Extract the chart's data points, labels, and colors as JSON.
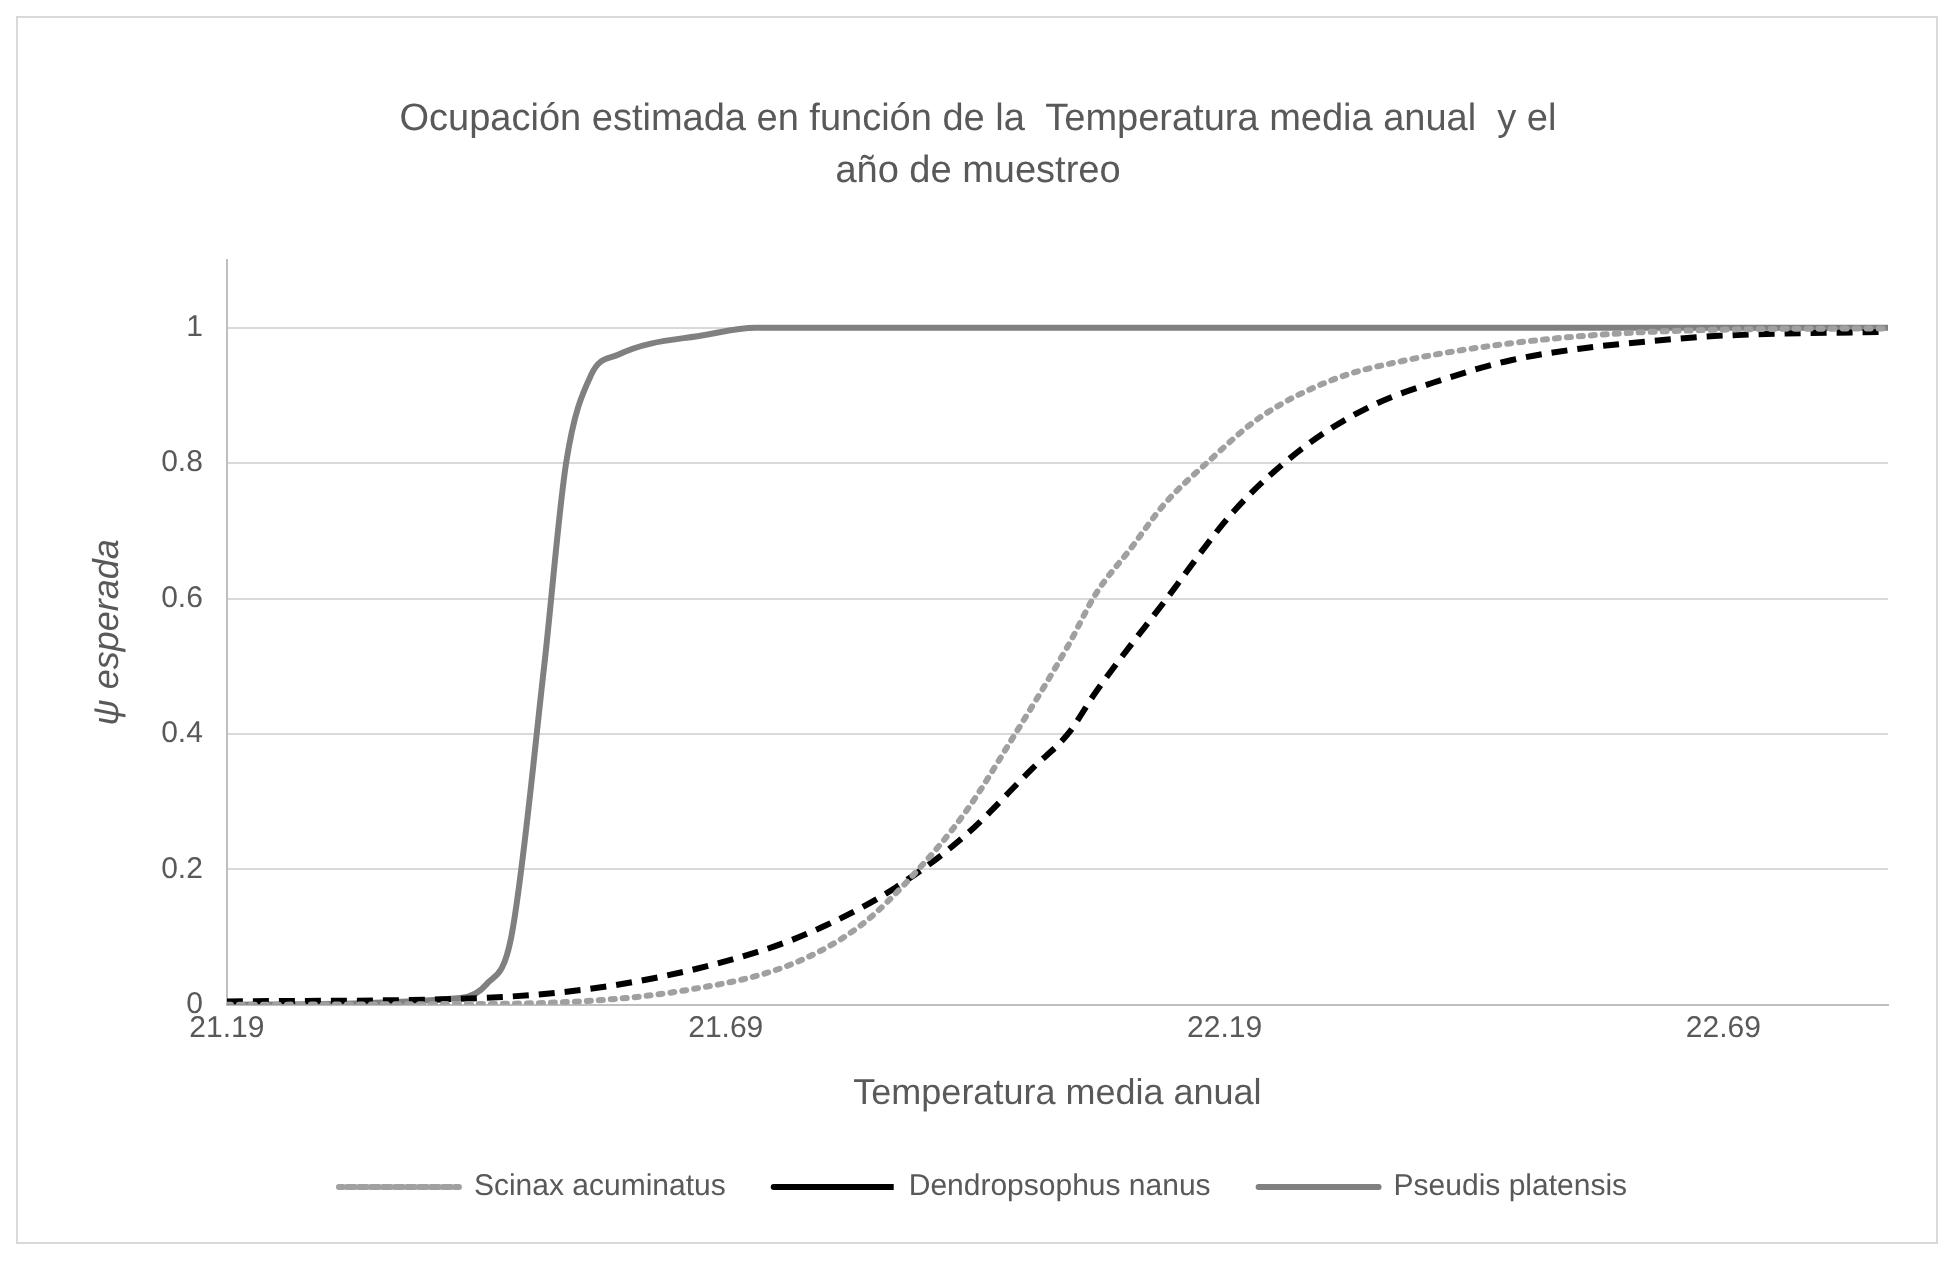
{
  "chart_data": {
    "type": "line",
    "title": "Ocupación estimada en función de la  Temperatura media anual  y el año de muestreo",
    "xlabel": "Temperatura media anual",
    "ylabel": "ψ esperada",
    "xlim": [
      21.19,
      22.855
    ],
    "xticks": [
      21.19,
      21.69,
      22.19,
      22.69
    ],
    "ylim": [
      0,
      1.1
    ],
    "yticks": [
      0,
      0.2,
      0.4,
      0.6,
      0.8,
      1
    ],
    "grid": "y",
    "legend": "bottom",
    "marker": "none",
    "series": [
      {
        "name": "Scinax acuminatus",
        "color": "#a0a0a0",
        "line_style": "dotted",
        "x": [
          21.19,
          21.4,
          21.514,
          21.652,
          21.756,
          21.825,
          21.88,
          21.93,
          21.978,
          22.033,
          22.061,
          22.096,
          22.13,
          22.172,
          22.227,
          22.3,
          22.372,
          22.477,
          22.58,
          22.685,
          22.855
        ],
        "values": [
          0,
          0.001,
          0.003,
          0.022,
          0.06,
          0.117,
          0.195,
          0.284,
          0.395,
          0.53,
          0.607,
          0.674,
          0.74,
          0.8,
          0.869,
          0.924,
          0.952,
          0.977,
          0.991,
          0.997,
          0.999
        ]
      },
      {
        "name": "Dendropsophus nanus",
        "color": "#000000",
        "line_style": "dashed",
        "x": [
          21.19,
          21.444,
          21.583,
          21.722,
          21.79,
          21.86,
          21.93,
          21.998,
          22.033,
          22.061,
          22.13,
          22.2,
          22.27,
          22.338,
          22.41,
          22.477,
          22.546,
          22.616,
          22.685,
          22.855
        ],
        "values": [
          0.005,
          0.01,
          0.03,
          0.078,
          0.117,
          0.173,
          0.25,
          0.35,
          0.4,
          0.462,
          0.596,
          0.73,
          0.824,
          0.885,
          0.924,
          0.952,
          0.969,
          0.98,
          0.988,
          0.994
        ]
      },
      {
        "name": "Pseudis platensis",
        "color": "#808080",
        "line_style": "solid",
        "x": [
          21.19,
          21.424,
          21.45,
          21.475,
          21.508,
          21.53,
          21.555,
          21.582,
          21.672,
          21.72,
          22.855
        ],
        "values": [
          0,
          0.01,
          0.03,
          0.1,
          0.5,
          0.8,
          0.93,
          0.96,
          0.99,
          1,
          1
        ]
      }
    ]
  }
}
